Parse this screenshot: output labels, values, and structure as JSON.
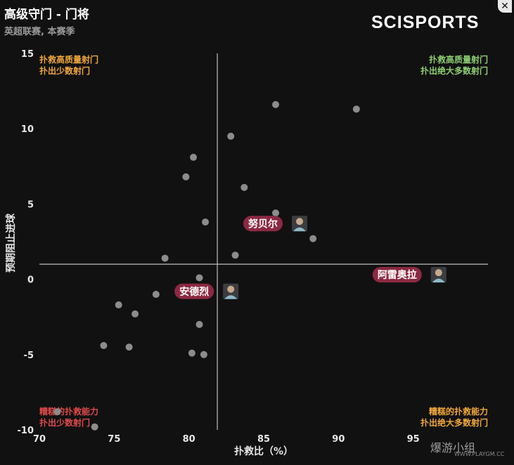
{
  "header": {
    "title": "高级守门 - 门将",
    "subtitle": "英超联赛, 本赛季",
    "brand": "SCISPORTS",
    "close_icon": "close-icon"
  },
  "watermark": {
    "text": "爆游小组",
    "sub": "WWW.PLAYGM.CC"
  },
  "colors": {
    "background": "#111111",
    "point": "#8c8c8c",
    "label_bg": "#8c2942",
    "quadrant_orange": "#f2a93b",
    "quadrant_green": "#8fd072",
    "quadrant_red": "#e04a4a"
  },
  "chart_data": {
    "type": "scatter",
    "xlabel": "扑救比（%）",
    "ylabel": "预期阻止进球",
    "xlim": [
      70,
      100
    ],
    "ylim": [
      -10,
      15
    ],
    "x_ticks": [
      70,
      75,
      80,
      85,
      90,
      95
    ],
    "y_ticks": [
      -10,
      -5,
      0,
      5,
      10,
      15
    ],
    "reference_lines": {
      "x": 81.9,
      "y": 1.0
    },
    "quadrant_labels": {
      "top_left": [
        "扑救高质量射门",
        "扑出少数射门"
      ],
      "top_right": [
        "扑救高质量射门",
        "扑出绝大多数射门"
      ],
      "bottom_left": [
        "糟糕的扑救能力",
        "扑出少数射门"
      ],
      "bottom_right": [
        "糟糕的扑救能力",
        "扑出绝大多数射门"
      ]
    },
    "points": [
      {
        "x": 85.8,
        "y": 11.6
      },
      {
        "x": 91.2,
        "y": 11.3
      },
      {
        "x": 82.8,
        "y": 9.5
      },
      {
        "x": 80.3,
        "y": 8.1
      },
      {
        "x": 79.8,
        "y": 6.8
      },
      {
        "x": 83.7,
        "y": 6.1
      },
      {
        "x": 85.8,
        "y": 4.4
      },
      {
        "x": 81.1,
        "y": 3.8
      },
      {
        "x": 88.3,
        "y": 2.7
      },
      {
        "x": 83.1,
        "y": 1.6
      },
      {
        "x": 78.4,
        "y": 1.4
      },
      {
        "x": 80.7,
        "y": 0.1
      },
      {
        "x": 77.8,
        "y": -1.0
      },
      {
        "x": 75.3,
        "y": -1.7
      },
      {
        "x": 76.4,
        "y": -2.3
      },
      {
        "x": 80.7,
        "y": -3.0
      },
      {
        "x": 74.3,
        "y": -4.4
      },
      {
        "x": 76.0,
        "y": -4.5
      },
      {
        "x": 80.2,
        "y": -4.9
      },
      {
        "x": 81.0,
        "y": -5.0
      },
      {
        "x": 71.2,
        "y": -8.8
      },
      {
        "x": 73.7,
        "y": -9.8
      }
    ],
    "labeled_players": [
      {
        "name": "努贝尔",
        "x": 87.4,
        "y": 3.7
      },
      {
        "name": "阿雷奥拉",
        "x": 96.7,
        "y": 0.3
      },
      {
        "name": "安德烈",
        "x": 82.8,
        "y": -0.8
      }
    ]
  }
}
